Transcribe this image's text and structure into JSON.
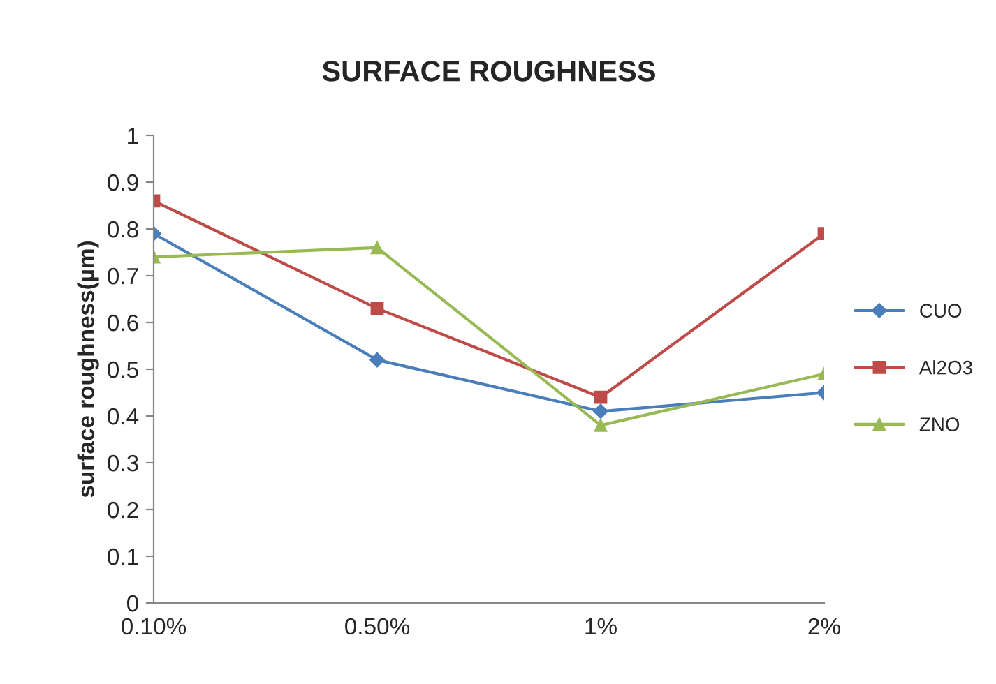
{
  "chart_data": {
    "type": "line",
    "title": "SURFACE ROUGHNESS",
    "ylabel": "surface roughness(µm)",
    "categories": [
      "0.10%",
      "0.50%",
      "1%",
      "2%"
    ],
    "series": [
      {
        "name": "CUO",
        "color": "#4a7ebb",
        "marker": "diamond",
        "values": [
          0.79,
          0.52,
          0.41,
          0.45
        ]
      },
      {
        "name": "Al2O3",
        "color": "#be4b48",
        "marker": "square",
        "values": [
          0.86,
          0.63,
          0.44,
          0.79
        ]
      },
      {
        "name": "ZNO",
        "color": "#98b954",
        "marker": "triangle",
        "values": [
          0.74,
          0.76,
          0.38,
          0.49
        ]
      }
    ],
    "ylim": [
      0,
      1
    ],
    "yticks": [
      0,
      0.1,
      0.2,
      0.3,
      0.4,
      0.5,
      0.6,
      0.7,
      0.8,
      0.9,
      1
    ],
    "grid": false,
    "legend": "right",
    "line_style": "solid"
  }
}
